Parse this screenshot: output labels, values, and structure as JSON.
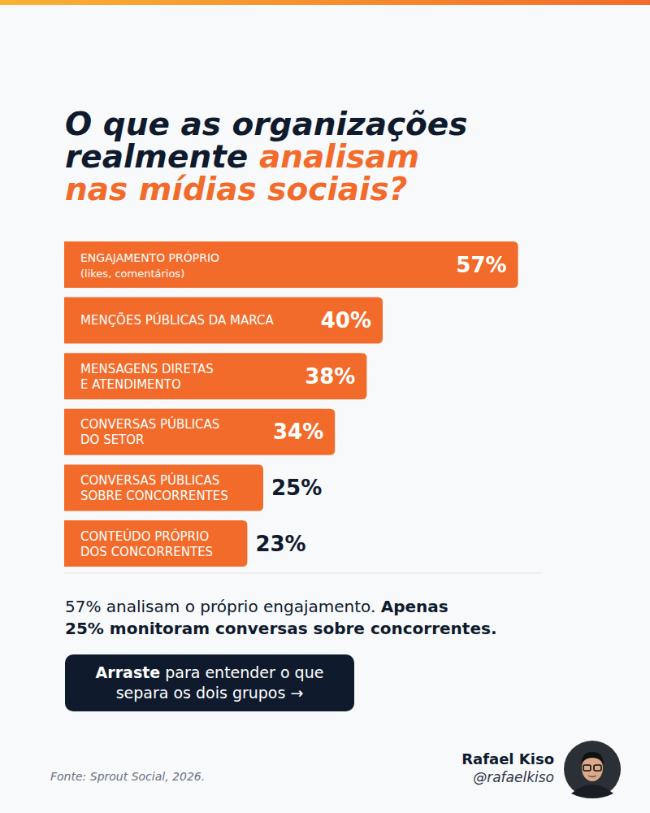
{
  "chart_data": {
    "type": "bar",
    "orientation": "horizontal",
    "title": "O que as organizações\nrealmente analisam\nnas mídias sociais?",
    "title_highlight": "analisam\nnas mídias sociais?",
    "categories": [
      "ENGAJAMENTO PRÓPRIO\n(likes, comentários)",
      "MENÇÕES PÚBLICAS DA MARCA",
      "MENSAGENS DIRETAS\nE ATENDIMENTO",
      "CONVERSAS PÚBLICAS\nDO SETOR",
      "CONVERSAS PÚBLICAS\nSOBRE CONCORRENTES",
      "CONTEÚDO PRÓPRIO\nDOS CONCORRENTES"
    ],
    "values": [
      57,
      40,
      38,
      34,
      25,
      23
    ],
    "value_labels": [
      "57%",
      "40%",
      "38%",
      "34%",
      "25%",
      "23%"
    ],
    "color": "#f26b2a",
    "xlim": [
      0,
      60
    ],
    "grid": false,
    "data_labels": true,
    "tick_labels": false
  },
  "takeaway": "57% analisam o próprio engajamento. Apenas\n25% monitoram conversas sobre concorrentes.",
  "takeaway_bold": "Apenas\n25% monitoram conversas sobre concorrentes.",
  "cta": "Arraste para entender o que\nsepara os dois grupos →",
  "cta_bold": "Arraste",
  "source": "Fonte: Sprout Social, 2026.",
  "author": {
    "name": "Rafael Kiso",
    "handle": "@rafaelkiso"
  }
}
